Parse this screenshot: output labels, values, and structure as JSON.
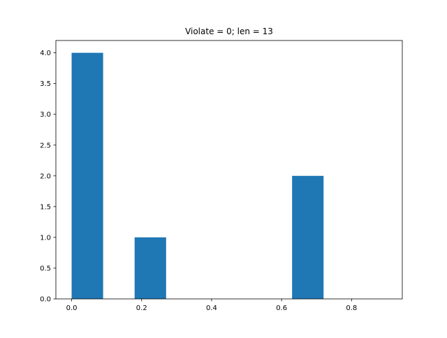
{
  "chart_data": {
    "type": "bar",
    "title": "Violate = 0; len = 13",
    "xlabel": "",
    "ylabel": "",
    "bins": [
      {
        "x0": 0.0,
        "x1": 0.09,
        "count": 4
      },
      {
        "x0": 0.09,
        "x1": 0.18,
        "count": 0
      },
      {
        "x0": 0.18,
        "x1": 0.27,
        "count": 1
      },
      {
        "x0": 0.27,
        "x1": 0.36,
        "count": 0
      },
      {
        "x0": 0.36,
        "x1": 0.45,
        "count": 0
      },
      {
        "x0": 0.45,
        "x1": 0.54,
        "count": 0
      },
      {
        "x0": 0.54,
        "x1": 0.63,
        "count": 0
      },
      {
        "x0": 0.63,
        "x1": 0.72,
        "count": 2
      },
      {
        "x0": 0.72,
        "x1": 0.81,
        "count": 0
      },
      {
        "x0": 0.81,
        "x1": 0.9,
        "count": 0
      }
    ],
    "xlim": [
      -0.045,
      0.945
    ],
    "ylim": [
      0,
      4.2
    ],
    "xticks": [
      0.0,
      0.2,
      0.4,
      0.6,
      0.8
    ],
    "xtick_labels": [
      "0.0",
      "0.2",
      "0.4",
      "0.6",
      "0.8"
    ],
    "yticks": [
      0.0,
      0.5,
      1.0,
      1.5,
      2.0,
      2.5,
      3.0,
      3.5,
      4.0
    ],
    "ytick_labels": [
      "0.0",
      "0.5",
      "1.0",
      "1.5",
      "2.0",
      "2.5",
      "3.0",
      "3.5",
      "4.0"
    ],
    "bar_color": "#1f77b4",
    "grid": false,
    "legend": "none"
  }
}
